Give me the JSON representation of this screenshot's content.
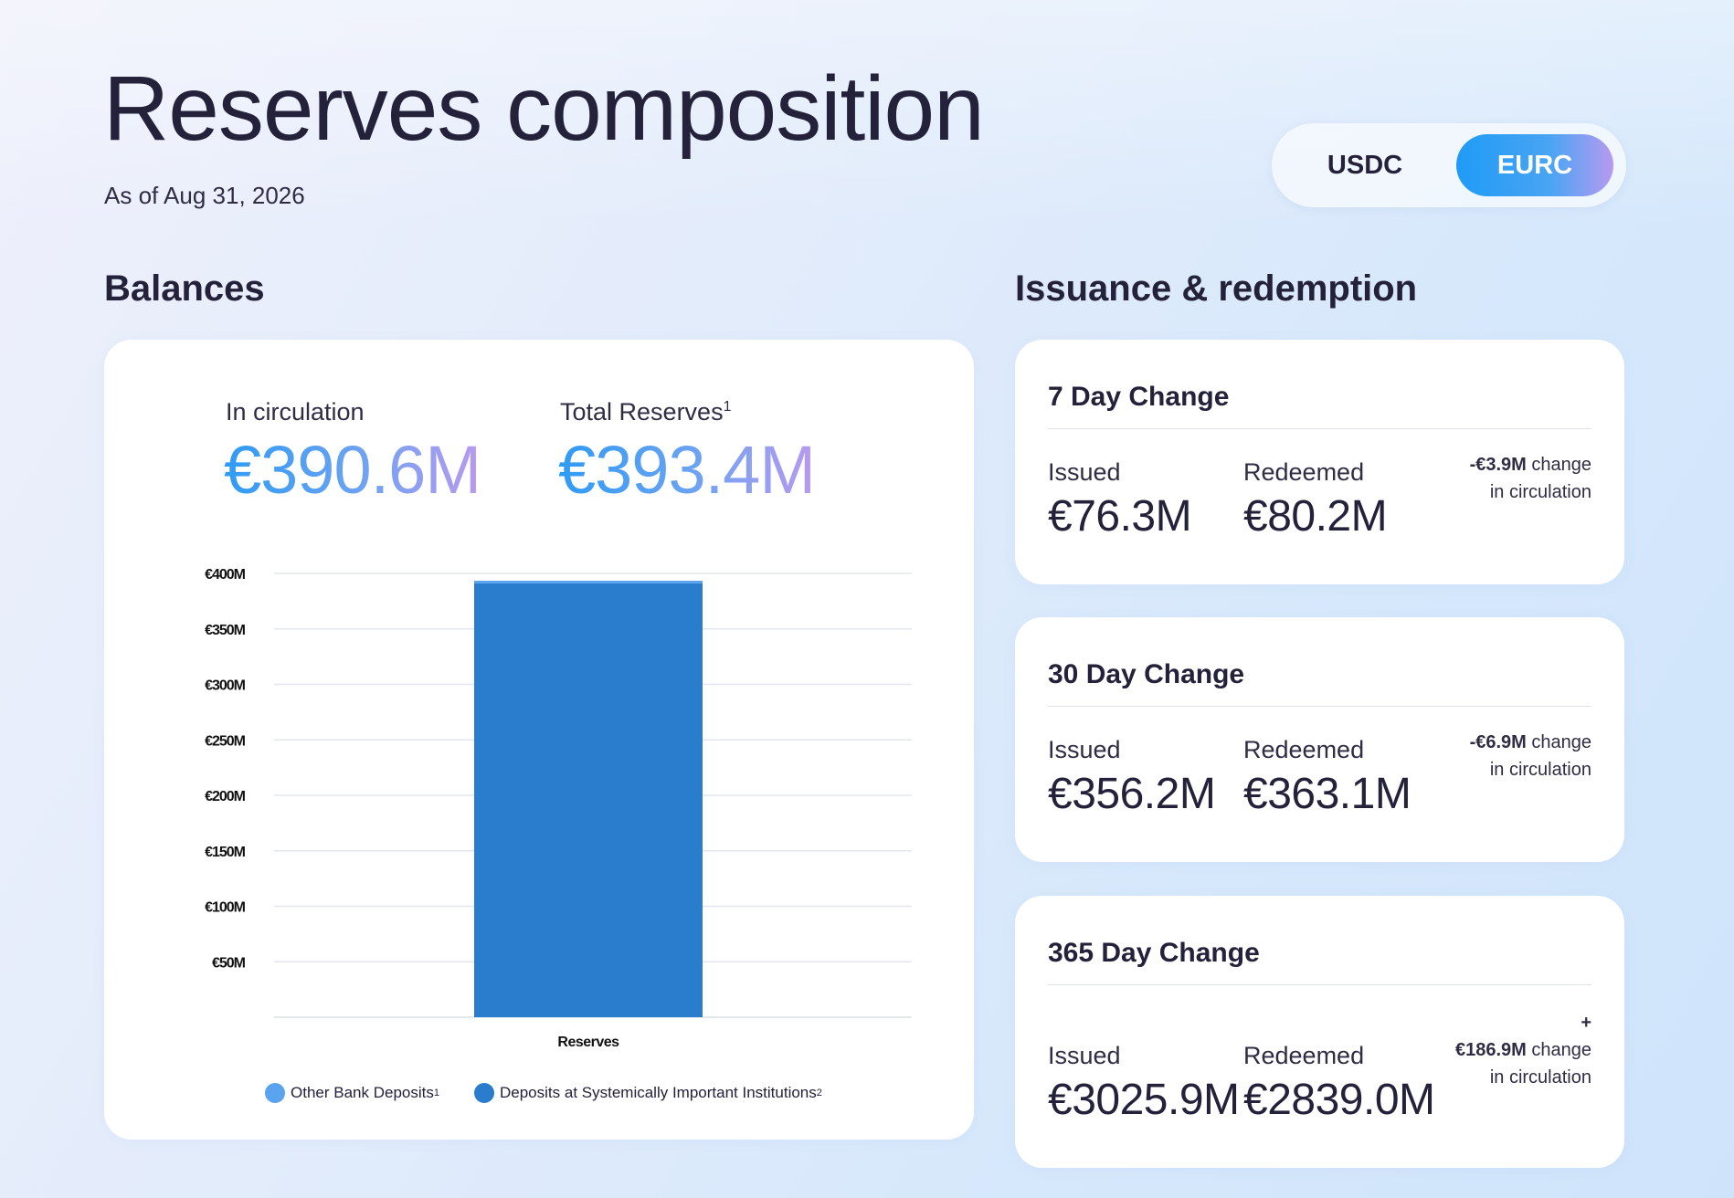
{
  "header": {
    "title": "Reserves composition",
    "as_of": "As of Aug 31, 2026",
    "toggle": {
      "options": [
        "USDC",
        "EURC"
      ],
      "selected": "EURC"
    }
  },
  "balances": {
    "section_title": "Balances",
    "in_circulation": {
      "label": "In circulation",
      "value": "€390.6M"
    },
    "total_reserves": {
      "label": "Total Reserves",
      "footnote": "1",
      "value": "€393.4M"
    },
    "legend": [
      {
        "label": "Other Bank Deposits",
        "footnote": "1",
        "color": "#5aa3ee"
      },
      {
        "label": "Deposits at Systemically Important Institutions",
        "footnote": "2",
        "color": "#2a7ccc"
      }
    ]
  },
  "chart_data": {
    "type": "bar",
    "stacked": true,
    "categories": [
      "Reserves"
    ],
    "series": [
      {
        "name": "Deposits at Systemically Important Institutions",
        "values": [
          391.0
        ],
        "color": "#2a7ccc"
      },
      {
        "name": "Other Bank Deposits",
        "values": [
          2.4
        ],
        "color": "#5aa3ee"
      }
    ],
    "yticks": [
      "€50M",
      "€100M",
      "€150M",
      "€200M",
      "€250M",
      "€300M",
      "€350M",
      "€400M"
    ],
    "ytick_values": [
      50,
      100,
      150,
      200,
      250,
      300,
      350,
      400
    ],
    "ylim": [
      0,
      400
    ],
    "grid": true,
    "legend_position": "bottom",
    "title": "",
    "xlabel": "",
    "ylabel": ""
  },
  "issuance": {
    "section_title": "Issuance & redemption",
    "cards": [
      {
        "title": "7 Day Change",
        "issued_label": "Issued",
        "issued_value": "€76.3M",
        "redeemed_label": "Redeemed",
        "redeemed_value": "€80.2M",
        "change_prefix": "",
        "change_amount": "-€3.9M",
        "change_text": "change",
        "change_suffix": "in circulation"
      },
      {
        "title": "30 Day Change",
        "issued_label": "Issued",
        "issued_value": "€356.2M",
        "redeemed_label": "Redeemed",
        "redeemed_value": "€363.1M",
        "change_prefix": "",
        "change_amount": "-€6.9M",
        "change_text": "change",
        "change_suffix": "in circulation"
      },
      {
        "title": "365 Day Change",
        "issued_label": "Issued",
        "issued_value": "€3025.9M",
        "redeemed_label": "Redeemed",
        "redeemed_value": "€2839.0M",
        "change_prefix": "+",
        "change_amount": "€186.9M",
        "change_text": "change",
        "change_suffix": "in circulation"
      }
    ]
  }
}
